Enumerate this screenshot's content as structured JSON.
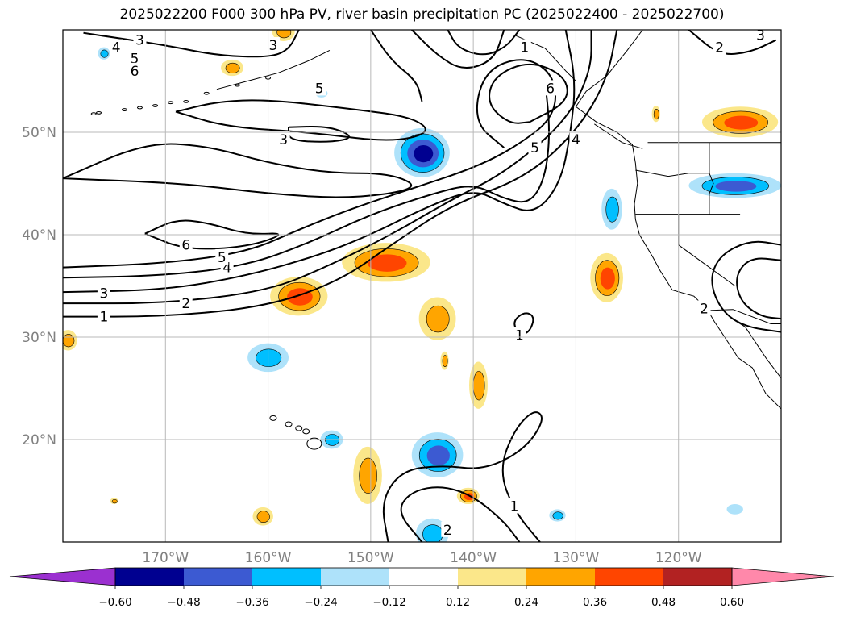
{
  "title": "2025022200 F000 300 hPa PV, river basin precipitation PC (2025022400 - 2025022700)",
  "map": {
    "lon_range": [
      -180,
      -110
    ],
    "lat_range": [
      10,
      60
    ],
    "lon_ticks": [
      {
        "value": -170,
        "label": "170°W"
      },
      {
        "value": -160,
        "label": "160°W"
      },
      {
        "value": -150,
        "label": "150°W"
      },
      {
        "value": -140,
        "label": "140°W"
      },
      {
        "value": -130,
        "label": "130°W"
      },
      {
        "value": -120,
        "label": "120°W"
      }
    ],
    "lat_ticks": [
      {
        "value": 20,
        "label": "20°N"
      },
      {
        "value": 30,
        "label": "30°N"
      },
      {
        "value": 40,
        "label": "40°N"
      },
      {
        "value": 50,
        "label": "50°N"
      }
    ],
    "gridlines": true,
    "coastline_color": "#000000",
    "contour_color": "#000000"
  },
  "pv_contour_labels": [
    {
      "text": "1",
      "lon": -176,
      "lat": 32
    },
    {
      "text": "2",
      "lon": -168,
      "lat": 33.3
    },
    {
      "text": "3",
      "lon": -176,
      "lat": 34.3
    },
    {
      "text": "4",
      "lon": -164,
      "lat": 36.8
    },
    {
      "text": "5",
      "lon": -164.5,
      "lat": 37.8
    },
    {
      "text": "6",
      "lon": -168,
      "lat": 39
    },
    {
      "text": "3",
      "lon": -158.5,
      "lat": 49.3
    },
    {
      "text": "5",
      "lon": -155,
      "lat": 54.3
    },
    {
      "text": "1",
      "lon": -135,
      "lat": 58.3
    },
    {
      "text": "6",
      "lon": -132.5,
      "lat": 54.3
    },
    {
      "text": "5",
      "lon": -134,
      "lat": 48.5
    },
    {
      "text": "4",
      "lon": -130,
      "lat": 49.3
    },
    {
      "text": "3",
      "lon": -172.5,
      "lat": 59
    },
    {
      "text": "4",
      "lon": -174.8,
      "lat": 58.3
    },
    {
      "text": "5",
      "lon": -173,
      "lat": 57.2
    },
    {
      "text": "6",
      "lon": -173,
      "lat": 56
    },
    {
      "text": "3",
      "lon": -159.5,
      "lat": 58.5
    },
    {
      "text": "2",
      "lon": -116,
      "lat": 58.3
    },
    {
      "text": "3",
      "lon": -112,
      "lat": 59.5
    },
    {
      "text": "2",
      "lon": -117.5,
      "lat": 32.8
    },
    {
      "text": "1",
      "lon": -135.5,
      "lat": 30.2
    },
    {
      "text": "1",
      "lon": -136,
      "lat": 13.5
    },
    {
      "text": "2",
      "lon": -142.5,
      "lat": 11.2
    }
  ],
  "precip_blobs": [
    {
      "lon": -145,
      "lat": 48,
      "rx": 2.7,
      "ry": 2.4,
      "value": -0.5
    },
    {
      "lon": -143.5,
      "lat": 18.5,
      "rx": 2.5,
      "ry": 2.2,
      "value": -0.42
    },
    {
      "lon": -160,
      "lat": 28,
      "rx": 2,
      "ry": 1.4,
      "value": -0.3
    },
    {
      "lon": -114.5,
      "lat": 44.8,
      "rx": 4.5,
      "ry": 1.2,
      "value": -0.38
    },
    {
      "lon": -126.5,
      "lat": 42.5,
      "rx": 1,
      "ry": 2,
      "value": -0.3
    },
    {
      "lon": -144,
      "lat": 10.8,
      "rx": 1.6,
      "ry": 1.5,
      "value": -0.3
    },
    {
      "lon": -153.8,
      "lat": 20,
      "rx": 1.1,
      "ry": 0.9,
      "value": -0.25
    },
    {
      "lon": -131.8,
      "lat": 12.6,
      "rx": 0.8,
      "ry": 0.6,
      "value": -0.25
    },
    {
      "lon": -114.5,
      "lat": 13.2,
      "rx": 0.8,
      "ry": 0.5,
      "value": -0.2
    },
    {
      "lon": -176,
      "lat": 57.7,
      "rx": 0.6,
      "ry": 0.6,
      "value": -0.25
    },
    {
      "lon": -154.8,
      "lat": 53.8,
      "rx": 0.6,
      "ry": 0.4,
      "value": -0.2
    },
    {
      "lon": -148.5,
      "lat": 37.3,
      "rx": 4.3,
      "ry": 1.9,
      "value": 0.43
    },
    {
      "lon": -157,
      "lat": 34,
      "rx": 2.8,
      "ry": 1.9,
      "value": 0.45
    },
    {
      "lon": -127,
      "lat": 35.8,
      "rx": 1.6,
      "ry": 2.4,
      "value": 0.4
    },
    {
      "lon": -114,
      "lat": 51,
      "rx": 3.7,
      "ry": 1.5,
      "value": 0.42
    },
    {
      "lon": -143.5,
      "lat": 31.8,
      "rx": 1.8,
      "ry": 2.1,
      "value": 0.3
    },
    {
      "lon": -150.3,
      "lat": 16.5,
      "rx": 1.4,
      "ry": 2.8,
      "value": 0.3
    },
    {
      "lon": -139.5,
      "lat": 25.3,
      "rx": 0.9,
      "ry": 2.3,
      "value": 0.3
    },
    {
      "lon": -140.5,
      "lat": 14.5,
      "rx": 1.1,
      "ry": 0.8,
      "value": 0.37
    },
    {
      "lon": -160.5,
      "lat": 12.5,
      "rx": 1,
      "ry": 0.9,
      "value": 0.28
    },
    {
      "lon": -158.5,
      "lat": 59.8,
      "rx": 1.1,
      "ry": 0.9,
      "value": 0.28
    },
    {
      "lon": -163.5,
      "lat": 56.3,
      "rx": 1.1,
      "ry": 0.8,
      "value": 0.28
    },
    {
      "lon": -142.8,
      "lat": 27.7,
      "rx": 0.4,
      "ry": 0.9,
      "value": 0.26
    },
    {
      "lon": -179.5,
      "lat": 29.7,
      "rx": 0.9,
      "ry": 1,
      "value": 0.28
    },
    {
      "lon": -122.2,
      "lat": 51.8,
      "rx": 0.4,
      "ry": 0.8,
      "value": 0.3
    },
    {
      "lon": -175,
      "lat": 14,
      "rx": 0.4,
      "ry": 0.3,
      "value": 0.3
    }
  ],
  "colorbar": {
    "levels": [
      -0.6,
      -0.48,
      -0.36,
      -0.24,
      -0.12,
      0.12,
      0.24,
      0.36,
      0.48,
      0.6
    ],
    "labels": [
      "−0.60",
      "−0.48",
      "−0.36",
      "−0.24",
      "−0.12",
      "0.12",
      "0.24",
      "0.36",
      "0.48",
      "0.60"
    ],
    "colors": [
      "#9b30d0",
      "#000090",
      "#3c5ad2",
      "#00bfff",
      "#aee2fa",
      "#ffffff",
      "#fbe78a",
      "#ffa500",
      "#ff4500",
      "#b22222",
      "#ff88aa"
    ]
  }
}
